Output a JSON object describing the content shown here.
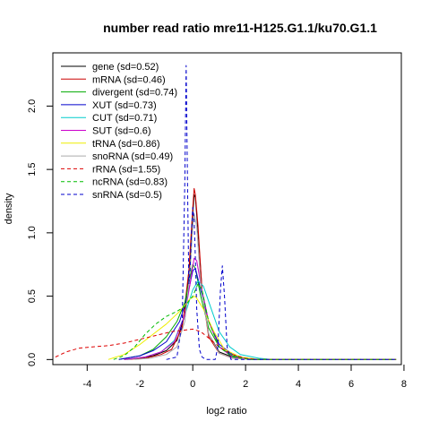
{
  "chart_data": {
    "type": "line",
    "title": "number read ratio mre11-H125.G1.1/ku70.G1.1",
    "xlabel": "log2 ratio",
    "ylabel": "density",
    "xlim": [
      -5.3,
      7.9
    ],
    "ylim": [
      -0.04,
      2.42
    ],
    "x_ticks": [
      -4,
      -2,
      0,
      2,
      4,
      6,
      8
    ],
    "y_ticks": [
      0.0,
      0.5,
      1.0,
      1.5,
      2.0
    ],
    "x_tick_labels": [
      "-4",
      "-2",
      "0",
      "2",
      "4",
      "6",
      "8"
    ],
    "y_tick_labels": [
      "0.0",
      "0.5",
      "1.0",
      "1.5",
      "2.0"
    ],
    "grid": false,
    "legend_position": "top-left",
    "series": [
      {
        "name": "gene (sd=0.52)",
        "color": "#000000",
        "dash": "solid",
        "points": [
          [
            -2.6,
            0
          ],
          [
            -2.0,
            0.01
          ],
          [
            -1.5,
            0.03
          ],
          [
            -1.0,
            0.07
          ],
          [
            -0.6,
            0.15
          ],
          [
            -0.3,
            0.35
          ],
          [
            -0.1,
            0.8
          ],
          [
            0.0,
            1.15
          ],
          [
            0.05,
            1.3
          ],
          [
            0.1,
            1.28
          ],
          [
            0.2,
            1.0
          ],
          [
            0.35,
            0.55
          ],
          [
            0.6,
            0.2
          ],
          [
            1.0,
            0.06
          ],
          [
            1.5,
            0.02
          ],
          [
            2.5,
            0
          ],
          [
            7.7,
            0
          ]
        ]
      },
      {
        "name": "mRNA (sd=0.46)",
        "color": "#cc0000",
        "dash": "solid",
        "points": [
          [
            -2.5,
            0
          ],
          [
            -1.8,
            0.01
          ],
          [
            -1.2,
            0.04
          ],
          [
            -0.8,
            0.08
          ],
          [
            -0.4,
            0.25
          ],
          [
            -0.15,
            0.7
          ],
          [
            0.0,
            1.2
          ],
          [
            0.05,
            1.35
          ],
          [
            0.1,
            1.3
          ],
          [
            0.2,
            1.05
          ],
          [
            0.35,
            0.55
          ],
          [
            0.6,
            0.18
          ],
          [
            1.0,
            0.05
          ],
          [
            1.5,
            0.01
          ],
          [
            2.5,
            0
          ],
          [
            7.7,
            0
          ]
        ]
      },
      {
        "name": "divergent (sd=0.74)",
        "color": "#00aa00",
        "dash": "solid",
        "points": [
          [
            -2.8,
            0
          ],
          [
            -2.0,
            0.03
          ],
          [
            -1.5,
            0.08
          ],
          [
            -1.0,
            0.18
          ],
          [
            -0.6,
            0.3
          ],
          [
            -0.3,
            0.45
          ],
          [
            -0.1,
            0.65
          ],
          [
            0.0,
            0.75
          ],
          [
            0.1,
            0.72
          ],
          [
            0.3,
            0.5
          ],
          [
            0.6,
            0.25
          ],
          [
            1.0,
            0.1
          ],
          [
            1.5,
            0.03
          ],
          [
            2.2,
            0
          ],
          [
            7.7,
            0
          ]
        ]
      },
      {
        "name": "XUT (sd=0.73)",
        "color": "#0000cc",
        "dash": "solid",
        "points": [
          [
            -2.8,
            0
          ],
          [
            -2.0,
            0.03
          ],
          [
            -1.5,
            0.07
          ],
          [
            -1.0,
            0.14
          ],
          [
            -0.5,
            0.3
          ],
          [
            -0.2,
            0.5
          ],
          [
            0.0,
            0.7
          ],
          [
            0.1,
            0.72
          ],
          [
            0.3,
            0.55
          ],
          [
            0.6,
            0.3
          ],
          [
            1.0,
            0.12
          ],
          [
            1.5,
            0.04
          ],
          [
            2.2,
            0
          ],
          [
            7.7,
            0
          ]
        ]
      },
      {
        "name": "CUT (sd=0.71)",
        "color": "#00cccc",
        "dash": "solid",
        "points": [
          [
            -2.5,
            0
          ],
          [
            -1.8,
            0.02
          ],
          [
            -1.2,
            0.06
          ],
          [
            -0.7,
            0.15
          ],
          [
            -0.3,
            0.35
          ],
          [
            0.0,
            0.55
          ],
          [
            0.2,
            0.62
          ],
          [
            0.4,
            0.58
          ],
          [
            0.7,
            0.4
          ],
          [
            1.0,
            0.22
          ],
          [
            1.4,
            0.1
          ],
          [
            1.8,
            0.04
          ],
          [
            2.5,
            0.01
          ],
          [
            3.0,
            0
          ],
          [
            7.7,
            0
          ]
        ]
      },
      {
        "name": "SUT (sd=0.6)",
        "color": "#cc00cc",
        "dash": "solid",
        "points": [
          [
            -2.6,
            0
          ],
          [
            -1.8,
            0.02
          ],
          [
            -1.2,
            0.06
          ],
          [
            -0.7,
            0.14
          ],
          [
            -0.3,
            0.35
          ],
          [
            -0.1,
            0.6
          ],
          [
            0.05,
            0.8
          ],
          [
            0.15,
            0.78
          ],
          [
            0.3,
            0.6
          ],
          [
            0.6,
            0.3
          ],
          [
            1.0,
            0.1
          ],
          [
            1.5,
            0.02
          ],
          [
            2.2,
            0
          ],
          [
            7.7,
            0
          ]
        ]
      },
      {
        "name": "tRNA (sd=0.86)",
        "color": "#eeee00",
        "dash": "solid",
        "points": [
          [
            -3.2,
            0
          ],
          [
            -2.6,
            0.04
          ],
          [
            -2.0,
            0.12
          ],
          [
            -1.5,
            0.2
          ],
          [
            -1.0,
            0.28
          ],
          [
            -0.5,
            0.38
          ],
          [
            -0.1,
            0.48
          ],
          [
            0.1,
            0.5
          ],
          [
            0.4,
            0.4
          ],
          [
            0.8,
            0.22
          ],
          [
            1.2,
            0.08
          ],
          [
            1.8,
            0.02
          ],
          [
            2.5,
            0
          ],
          [
            7.7,
            0
          ]
        ]
      },
      {
        "name": "snoRNA (sd=0.49)",
        "color": "#aaaaaa",
        "dash": "solid",
        "points": [
          [
            -2.2,
            0
          ],
          [
            -1.6,
            0.01
          ],
          [
            -1.0,
            0.04
          ],
          [
            -0.6,
            0.1
          ],
          [
            -0.3,
            0.3
          ],
          [
            -0.1,
            0.7
          ],
          [
            0.0,
            1.05
          ],
          [
            0.05,
            1.15
          ],
          [
            0.15,
            1.05
          ],
          [
            0.3,
            0.6
          ],
          [
            0.6,
            0.2
          ],
          [
            1.0,
            0.05
          ],
          [
            1.5,
            0.01
          ],
          [
            2.2,
            0
          ],
          [
            7.7,
            0
          ]
        ]
      },
      {
        "name": "rRNA (sd=1.55)",
        "color": "#dd0000",
        "dash": "dashed",
        "points": [
          [
            -5.2,
            0.02
          ],
          [
            -4.8,
            0.06
          ],
          [
            -4.3,
            0.09
          ],
          [
            -3.8,
            0.1
          ],
          [
            -3.2,
            0.11
          ],
          [
            -2.6,
            0.13
          ],
          [
            -2.0,
            0.16
          ],
          [
            -1.4,
            0.19
          ],
          [
            -0.8,
            0.22
          ],
          [
            -0.4,
            0.23
          ],
          [
            0.0,
            0.24
          ],
          [
            0.3,
            0.22
          ],
          [
            0.6,
            0.17
          ],
          [
            1.0,
            0.1
          ],
          [
            1.5,
            0.04
          ],
          [
            2.0,
            0.01
          ],
          [
            2.5,
            0
          ],
          [
            7.7,
            0
          ]
        ]
      },
      {
        "name": "ncRNA (sd=0.83)",
        "color": "#00bb00",
        "dash": "dashed",
        "points": [
          [
            -3.0,
            0
          ],
          [
            -2.6,
            0.03
          ],
          [
            -2.2,
            0.1
          ],
          [
            -1.8,
            0.2
          ],
          [
            -1.4,
            0.28
          ],
          [
            -1.0,
            0.34
          ],
          [
            -0.6,
            0.38
          ],
          [
            -0.3,
            0.42
          ],
          [
            0.0,
            0.5
          ],
          [
            0.2,
            0.6
          ],
          [
            0.35,
            0.55
          ],
          [
            0.6,
            0.3
          ],
          [
            1.0,
            0.1
          ],
          [
            1.5,
            0.02
          ],
          [
            2.2,
            0
          ],
          [
            7.7,
            0
          ]
        ]
      },
      {
        "name": "snRNA (sd=0.5)",
        "color": "#0000cc",
        "dash": "dashed",
        "points": [
          [
            -1.0,
            0
          ],
          [
            -0.6,
            0.02
          ],
          [
            -0.4,
            0.3
          ],
          [
            -0.3,
            1.4
          ],
          [
            -0.25,
            2.32
          ],
          [
            -0.2,
            1.4
          ],
          [
            -0.15,
            0.6
          ],
          [
            -0.1,
            0.7
          ],
          [
            -0.05,
            1.0
          ],
          [
            0.0,
            1.2
          ],
          [
            0.05,
            1.1
          ],
          [
            0.1,
            0.8
          ],
          [
            0.15,
            0.4
          ],
          [
            0.25,
            0.08
          ],
          [
            0.35,
            0.02
          ],
          [
            0.5,
            0
          ],
          [
            0.85,
            0
          ],
          [
            0.95,
            0.1
          ],
          [
            1.05,
            0.55
          ],
          [
            1.12,
            0.74
          ],
          [
            1.2,
            0.5
          ],
          [
            1.3,
            0.1
          ],
          [
            1.45,
            0
          ],
          [
            7.7,
            0
          ]
        ]
      }
    ]
  }
}
